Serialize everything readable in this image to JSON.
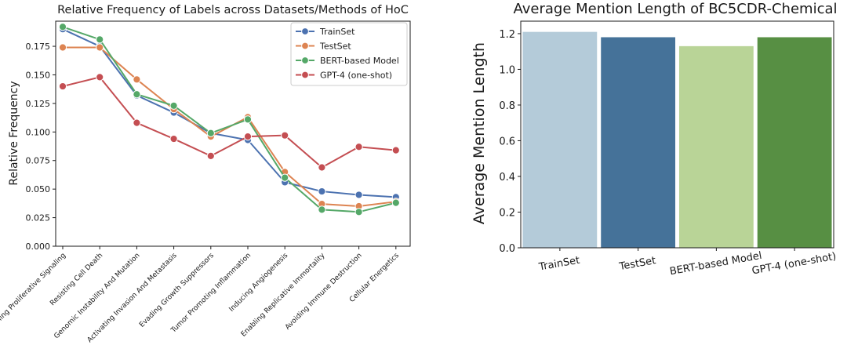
{
  "chart_data": [
    {
      "type": "line",
      "title": "Relative Frequency of Labels across Datasets/Methods of HoC",
      "xlabel": "",
      "ylabel": "Relative Frequency",
      "ylim": [
        0,
        0.197
      ],
      "yticks": [
        "0.000",
        "0.025",
        "0.050",
        "0.075",
        "0.100",
        "0.125",
        "0.150",
        "0.175"
      ],
      "categories": [
        "Sustaining Proliferative Signaling",
        "Resisting Cell Death",
        "Genomic Instability And Mutation",
        "Activating Invasion And Metastasis",
        "Evading Growth Suppressors",
        "Tumor Promoting Inflammation",
        "Inducing Angiogenesis",
        "Enabling Replicative Immortality",
        "Avoiding Immune Destruction",
        "Cellular Energetics"
      ],
      "series": [
        {
          "name": "TrainSet",
          "color": "#4c72b0",
          "values": [
            0.19,
            0.175,
            0.132,
            0.117,
            0.099,
            0.093,
            0.056,
            0.048,
            0.045,
            0.043
          ]
        },
        {
          "name": "TestSet",
          "color": "#dd8452",
          "values": [
            0.174,
            0.174,
            0.146,
            0.12,
            0.096,
            0.113,
            0.065,
            0.037,
            0.035,
            0.039
          ]
        },
        {
          "name": "BERT-based Model",
          "color": "#55a868",
          "values": [
            0.192,
            0.181,
            0.133,
            0.123,
            0.099,
            0.111,
            0.06,
            0.032,
            0.03,
            0.038
          ]
        },
        {
          "name": "GPT-4 (one-shot)",
          "color": "#c44e52",
          "values": [
            0.14,
            0.148,
            0.108,
            0.094,
            0.079,
            0.096,
            0.097,
            0.069,
            0.087,
            0.084
          ]
        }
      ],
      "legend_position": "top-right"
    },
    {
      "type": "bar",
      "title": "Average Mention Length of BC5CDR-Chemical",
      "xlabel": "",
      "ylabel": "Average Mention Length",
      "ylim": [
        0,
        1.27
      ],
      "yticks": [
        "0.0",
        "0.2",
        "0.4",
        "0.6",
        "0.8",
        "1.0",
        "1.2"
      ],
      "categories": [
        "TrainSet",
        "TestSet",
        "BERT-based Model",
        "GPT-4 (one-shot)"
      ],
      "values": [
        1.21,
        1.18,
        1.13,
        1.18
      ],
      "colors": [
        "#b4cbd9",
        "#457299",
        "#b9d497",
        "#578f43"
      ]
    }
  ]
}
